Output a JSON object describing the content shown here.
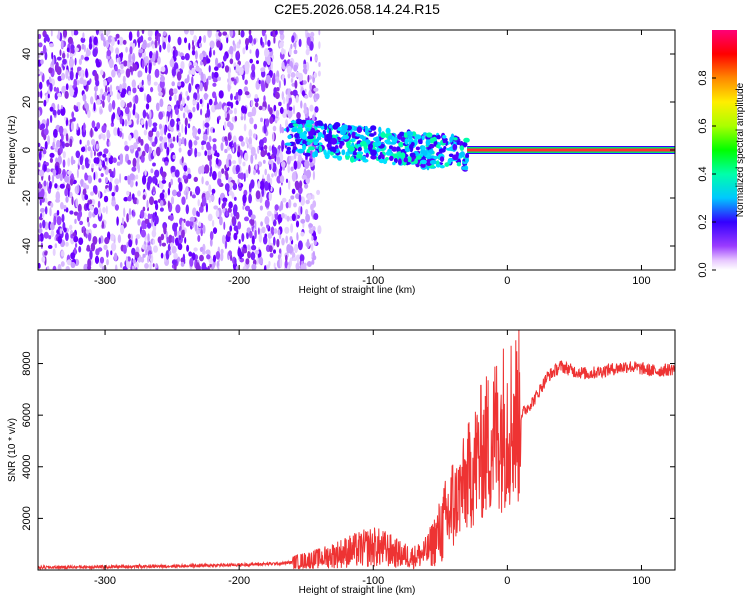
{
  "title": "C2E5.2026.058.14.24.R15",
  "chart_data": [
    {
      "type": "heatmap",
      "xlabel": "Height of straight line (km)",
      "ylabel": "Frequency (Hz)",
      "xlim": [
        -350,
        125
      ],
      "ylim": [
        -50,
        50
      ],
      "xticks": [
        -300,
        -200,
        -100,
        0,
        100
      ],
      "yticks": [
        -40,
        -20,
        0,
        20,
        40
      ],
      "colorbar": {
        "label": "Normalized spectral amplitude",
        "range": [
          0,
          1
        ],
        "ticks": [
          "0.0",
          "0.2",
          "0.4",
          "0.6",
          "0.8"
        ]
      },
      "features": {
        "noise_region_x": [
          -350,
          -140
        ],
        "signal_start_x": -165,
        "strong_line_from_x": -30,
        "line_freq_hz": 0
      }
    },
    {
      "type": "line",
      "xlabel": "Height of straight line (km)",
      "ylabel": "SNR (10 * v/v)",
      "xlim": [
        -350,
        125
      ],
      "ylim": [
        0,
        9300
      ],
      "xticks": [
        -300,
        -200,
        -100,
        0,
        100
      ],
      "yticks": [
        2000,
        4000,
        6000,
        8000
      ],
      "color": "#ee3333",
      "series": [
        {
          "x": [
            -350,
            -300,
            -250,
            -200,
            -170,
            -160,
            -140,
            -120,
            -100,
            -90,
            -80,
            -70,
            -60,
            -50,
            -40,
            -30,
            -20,
            -10,
            0,
            10,
            20,
            30,
            40,
            50,
            60,
            70,
            80,
            90,
            100,
            110,
            125
          ],
          "y": [
            100,
            120,
            150,
            200,
            250,
            300,
            450,
            700,
            900,
            800,
            600,
            500,
            700,
            1500,
            2500,
            3500,
            4500,
            5200,
            5800,
            6000,
            6600,
            7500,
            7900,
            7700,
            7600,
            7700,
            7800,
            7900,
            7800,
            7700,
            7800
          ]
        }
      ]
    }
  ]
}
